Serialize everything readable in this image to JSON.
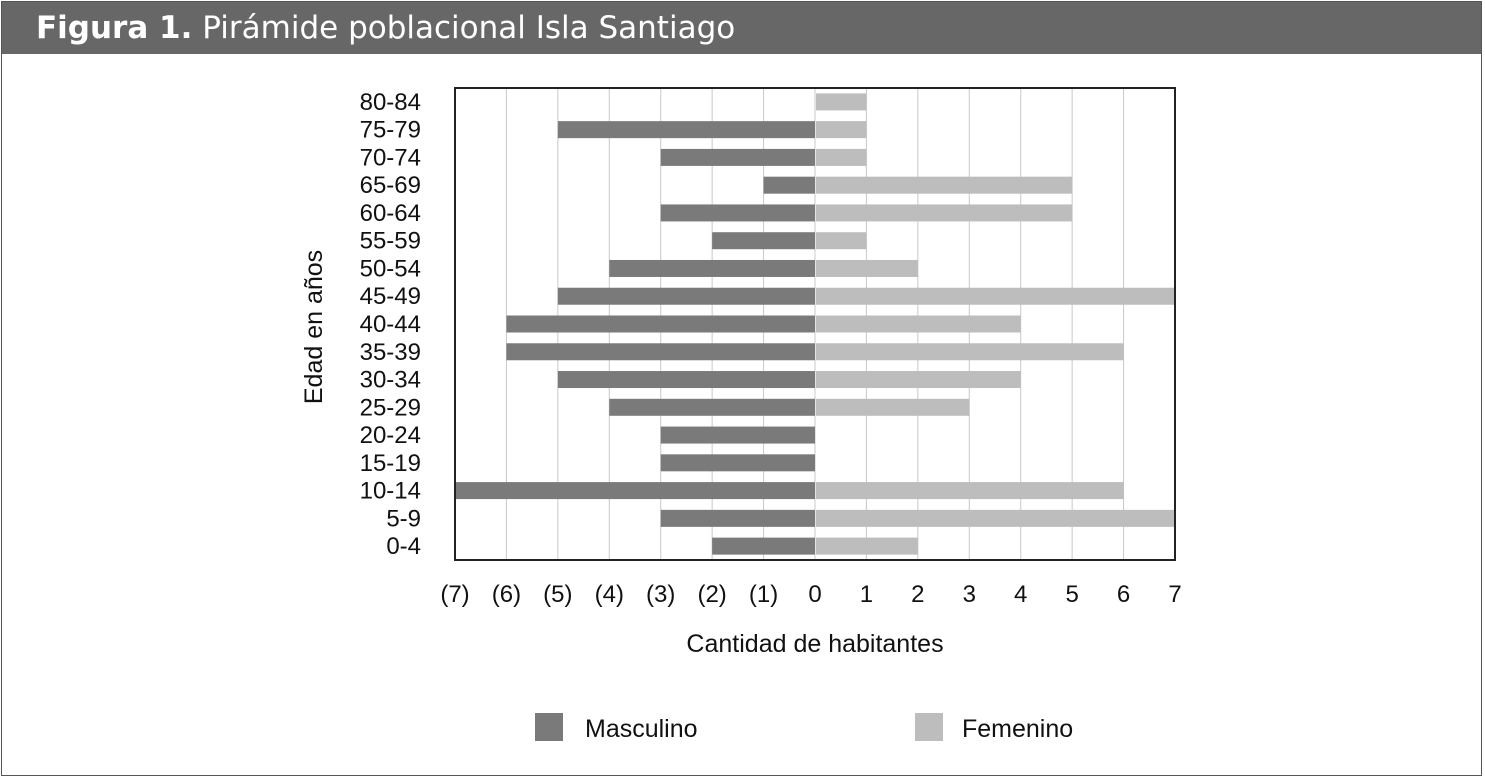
{
  "header": {
    "figure_label": "Figura 1.",
    "title": "Pirámide poblacional Isla Santiago"
  },
  "colors": {
    "header_bg": "#676767",
    "masculino": "#7a7a7a",
    "femenino": "#bdbdbd"
  },
  "chart_data": {
    "type": "bar",
    "orientation": "horizontal",
    "title": "Pirámide poblacional Isla Santiago",
    "xlabel": "Cantidad de habitantes",
    "ylabel": "Edad en años",
    "xlim": [
      -7,
      7
    ],
    "x_tick_labels": [
      "(7)",
      "(6)",
      "(5)",
      "(4)",
      "(3)",
      "(2)",
      "(1)",
      "0",
      "1",
      "2",
      "3",
      "4",
      "5",
      "6",
      "7"
    ],
    "categories": [
      "80-84",
      "75-79",
      "70-74",
      "65-69",
      "60-64",
      "55-59",
      "50-54",
      "45-49",
      "40-44",
      "35-39",
      "30-34",
      "25-29",
      "20-24",
      "15-19",
      "10-14",
      "5-9",
      "0-4"
    ],
    "series": [
      {
        "name": "Masculino",
        "values": [
          0,
          5,
          3,
          1,
          3,
          2,
          4,
          5,
          6,
          6,
          5,
          4,
          3,
          3,
          7,
          3,
          2
        ]
      },
      {
        "name": "Femenino",
        "values": [
          1,
          1,
          1,
          5,
          5,
          1,
          2,
          7,
          4,
          6,
          4,
          3,
          0,
          0,
          6,
          7,
          2
        ]
      }
    ],
    "grid": true,
    "legend": "bottom"
  }
}
